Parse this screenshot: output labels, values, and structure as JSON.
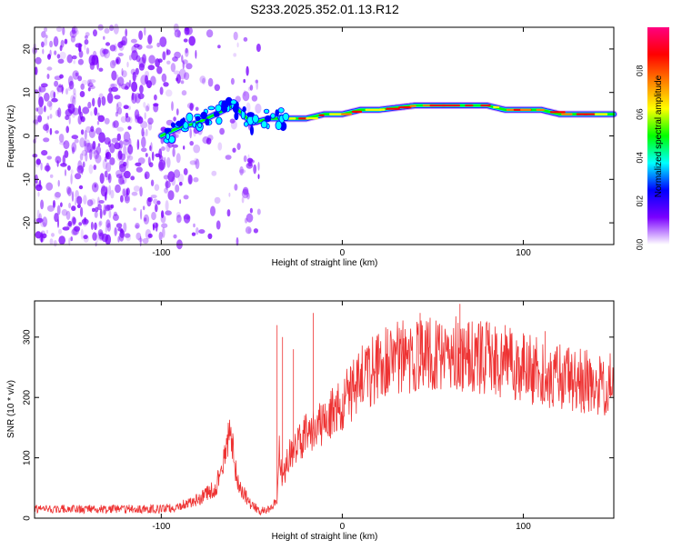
{
  "title": "S233.2025.352.01.13.R12",
  "chart_data": [
    {
      "type": "heatmap",
      "xlabel": "Height of straight line (km)",
      "ylabel": "Frequency (Hz)",
      "xlim": [
        -170,
        150
      ],
      "ylim": [
        -25,
        25
      ],
      "x_ticks": [
        -100,
        0,
        100
      ],
      "y_ticks": [
        -20,
        -10,
        0,
        10,
        20
      ],
      "ridge": {
        "description": "Dominant frequency line vs height",
        "x": [
          -100,
          -90,
          -80,
          -70,
          -60,
          -50,
          -40,
          -30,
          -20,
          -10,
          0,
          10,
          20,
          40,
          60,
          80,
          90,
          100,
          110,
          120,
          140,
          150
        ],
        "y": [
          0,
          2,
          3,
          5,
          7,
          3,
          4,
          4,
          4,
          5,
          5,
          6,
          6,
          7,
          7,
          7,
          6,
          6,
          6,
          5,
          5,
          5
        ]
      },
      "noise_region_x": [
        -170,
        -45
      ]
    },
    {
      "type": "colorbar",
      "label": "Normalized spectral amplitude",
      "range": [
        0,
        1
      ],
      "ticks": [
        0.0,
        0.2,
        0.4,
        0.6,
        0.8
      ],
      "colors": [
        "#ffffff",
        "#7a00ff",
        "#0000ff",
        "#00ffff",
        "#00ff00",
        "#ffff00",
        "#ff8000",
        "#ff0000",
        "#ff0080"
      ]
    },
    {
      "type": "line",
      "xlabel": "Height of straight line (km)",
      "ylabel": "SNR (10 * v/v)",
      "xlim": [
        -170,
        150
      ],
      "ylim": [
        0,
        360
      ],
      "x_ticks": [
        -100,
        0,
        100
      ],
      "y_ticks": [
        0,
        100,
        200,
        300
      ],
      "color": "#ee3333",
      "envelope": {
        "x": [
          -170,
          -100,
          -90,
          -80,
          -70,
          -65,
          -62,
          -58,
          -50,
          -45,
          -40,
          -36,
          -35,
          -33,
          -30,
          -20,
          -10,
          0,
          10,
          20,
          30,
          40,
          50,
          60,
          70,
          80,
          90,
          100,
          110,
          120,
          130,
          140,
          150
        ],
        "y": [
          15,
          15,
          20,
          30,
          50,
          100,
          150,
          60,
          20,
          12,
          15,
          30,
          120,
          60,
          100,
          140,
          160,
          190,
          230,
          250,
          265,
          270,
          275,
          275,
          270,
          265,
          260,
          250,
          240,
          235,
          230,
          225,
          220
        ]
      },
      "spikes": [
        {
          "x": -36,
          "y": 320
        },
        {
          "x": -33,
          "y": 300
        },
        {
          "x": -27,
          "y": 280
        },
        {
          "x": -16,
          "y": 340
        },
        {
          "x": 43,
          "y": 340
        },
        {
          "x": 65,
          "y": 355
        },
        {
          "x": 90,
          "y": 320
        },
        {
          "x": 112,
          "y": 310
        }
      ]
    }
  ]
}
